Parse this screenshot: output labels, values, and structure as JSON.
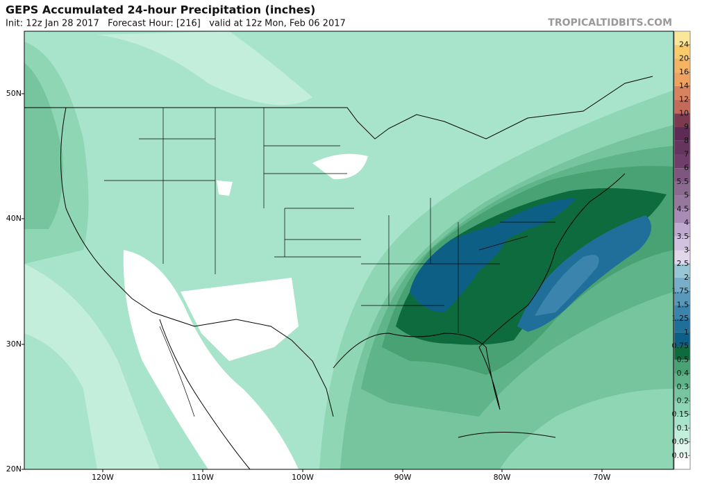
{
  "header": {
    "title": "GEPS Accumulated 24-hour Precipitation (inches)",
    "subtitle": "Init: 12z Jan 28 2017   Forecast Hour: [216]   valid at 12z Mon, Feb 06 2017",
    "watermark": "TROPICALTIDBITS.COM"
  },
  "map": {
    "lat_labels": [
      "20N",
      "30N",
      "40N",
      "50N"
    ],
    "lon_labels": [
      "120W",
      "110W",
      "100W",
      "90W",
      "80W",
      "70W"
    ]
  },
  "colorbar": {
    "levels": [
      0.01,
      0.05,
      0.1,
      0.15,
      0.2,
      0.3,
      0.4,
      0.5,
      0.75,
      1,
      1.25,
      1.5,
      1.75,
      2,
      2.5,
      3,
      3.5,
      4,
      4.5,
      5,
      5.5,
      6,
      7,
      8,
      9,
      10,
      12,
      14,
      16,
      20,
      24
    ],
    "colors": [
      "#ffffff",
      "#e3f7ee",
      "#c4eedc",
      "#a8e4cb",
      "#8fd6b5",
      "#77c59e",
      "#5fb489",
      "#48a273",
      "#0d6b3d",
      "#0e5f86",
      "#1f6f9a",
      "#3b84ad",
      "#5898bb",
      "#78aec9",
      "#98c6d6",
      "#e0d7ea",
      "#d2c2e0",
      "#bfa9cf",
      "#a98bb5",
      "#96789f",
      "#8a6a8e",
      "#7e5680",
      "#6f3e6b",
      "#65345f",
      "#5e2a56",
      "#7b3a50",
      "#c36a5b",
      "#d9825f",
      "#eea25f",
      "#f3b564",
      "#f8cb6c",
      "#fbe69a"
    ]
  }
}
